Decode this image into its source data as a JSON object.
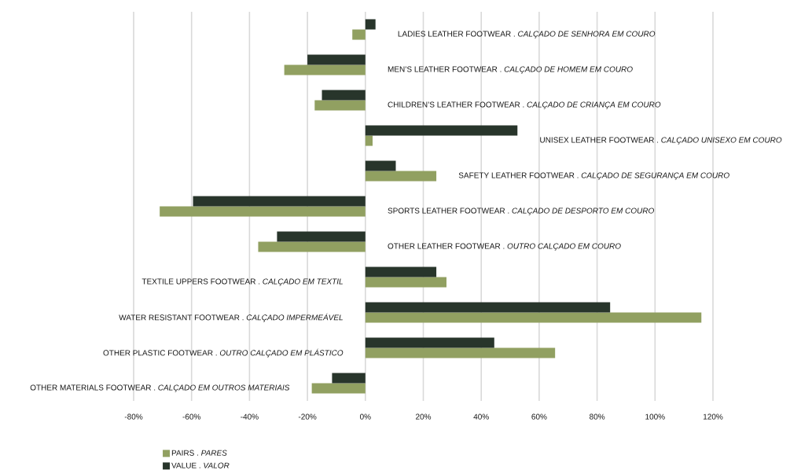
{
  "chart_data": {
    "type": "bar",
    "orientation": "horizontal",
    "categories": [
      "LADIES LEATHER FOOTWEAR . *CALÇADO DE SENHORA EM COURO*",
      "MEN’S LEATHER FOOTWEAR . *CALÇADO DE HOMEM EM COURO*",
      "CHILDREN’S LEATHER FOOTWEAR . *CALÇADO DE CRIANÇA EM COURO*",
      "UNISEX LEATHER FOOTWEAR . *CALÇADO UNISEXO EM COURO*",
      "SAFETY LEATHER FOOTWEAR . *CALÇADO DE SEGURANÇA EM COURO*",
      "SPORTS LEATHER FOOTWEAR . *CALÇADO DE DESPORTO EM COURO*",
      "OTHER LEATHER FOOTWEAR . *OUTRO CALÇADO EM COURO*",
      "TEXTILE UPPERS FOOTWEAR . *CALÇADO EM TEXTIL*",
      "WATER RESISTANT FOOTWEAR . *CALÇADO IMPERMEÁVEL*",
      "OTHER PLASTIC FOOTWEAR . *OUTRO CALÇADO EM PLÁSTICO*",
      "OTHER MATERIALS FOOTWEAR . *CALÇADO EM OUTROS MATERIAIS*"
    ],
    "series": [
      {
        "name": "PAIRS . *PARES*",
        "color": "#91A061",
        "values": [
          -4.5,
          -28,
          -17.5,
          2.5,
          24.5,
          -71,
          -37,
          28,
          116,
          65.5,
          -18.5
        ]
      },
      {
        "name": "VALUE . *VALOR*",
        "color": "#28352B",
        "values": [
          3.5,
          -20,
          -15,
          52.5,
          10.5,
          -59.5,
          -30.5,
          24.5,
          84.5,
          44.5,
          -11.5
        ]
      }
    ],
    "xlim": [
      -80,
      120
    ],
    "xticks": [
      {
        "value": -80,
        "label": "-80%"
      },
      {
        "value": -60,
        "label": "-60%"
      },
      {
        "value": -40,
        "label": "-40%"
      },
      {
        "value": -20,
        "label": "-20%"
      },
      {
        "value": 0,
        "label": "0%"
      },
      {
        "value": 20,
        "label": "20%"
      },
      {
        "value": 40,
        "label": "40%"
      },
      {
        "value": 60,
        "label": "60%"
      },
      {
        "value": 80,
        "label": "80%"
      },
      {
        "value": 100,
        "label": "100%"
      },
      {
        "value": 120,
        "label": "120%"
      }
    ],
    "grid": "x",
    "legend": "bottom left"
  }
}
